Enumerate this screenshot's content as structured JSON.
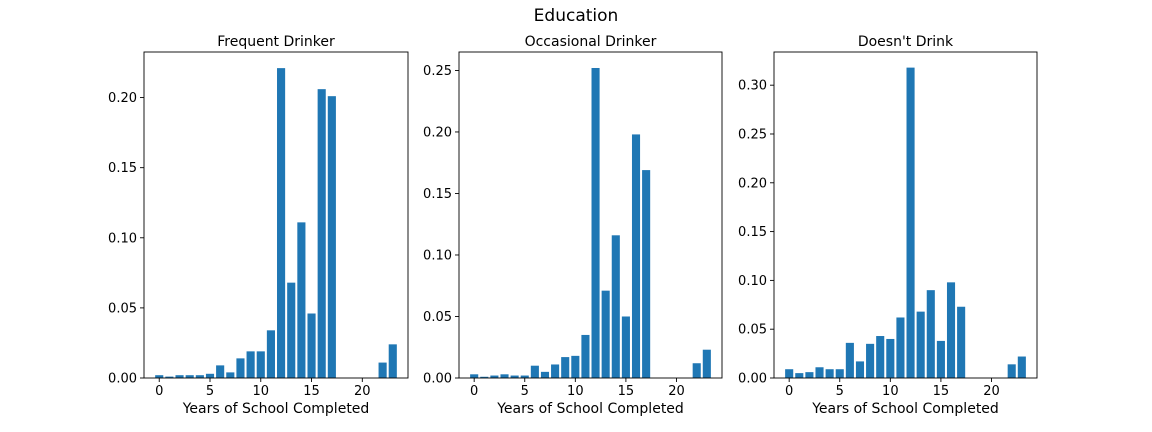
{
  "figure": {
    "suptitle": "Education",
    "bar_color": "#1f77b4"
  },
  "chart_data": [
    {
      "type": "bar",
      "title": "Frequent Drinker",
      "xlabel": "Years of School Completed",
      "ylabel": "",
      "x": [
        0,
        1,
        2,
        3,
        4,
        5,
        6,
        7,
        8,
        9,
        10,
        11,
        12,
        13,
        14,
        15,
        16,
        17,
        18,
        19,
        20,
        21,
        22,
        23
      ],
      "values": [
        0.002,
        0.001,
        0.002,
        0.002,
        0.002,
        0.003,
        0.009,
        0.004,
        0.014,
        0.019,
        0.019,
        0.034,
        0.221,
        0.068,
        0.111,
        0.046,
        0.206,
        0.201,
        0,
        0,
        0,
        0,
        0.011,
        0.024
      ],
      "xlim": [
        -1.5,
        24.5
      ],
      "ylim": [
        0,
        0.2325
      ],
      "xticks": [
        0,
        5,
        10,
        15,
        20
      ],
      "yticks": [
        0.0,
        0.05,
        0.1,
        0.15,
        0.2
      ],
      "ytick_labels": [
        "0.00",
        "0.05",
        "0.10",
        "0.15",
        "0.20"
      ],
      "grid": false
    },
    {
      "type": "bar",
      "title": "Occasional Drinker",
      "xlabel": "Years of School Completed",
      "ylabel": "",
      "x": [
        0,
        1,
        2,
        3,
        4,
        5,
        6,
        7,
        8,
        9,
        10,
        11,
        12,
        13,
        14,
        15,
        16,
        17,
        18,
        19,
        20,
        21,
        22,
        23
      ],
      "values": [
        0.003,
        0.001,
        0.002,
        0.003,
        0.002,
        0.002,
        0.01,
        0.005,
        0.011,
        0.017,
        0.018,
        0.035,
        0.252,
        0.071,
        0.116,
        0.05,
        0.198,
        0.169,
        0,
        0,
        0,
        0,
        0.012,
        0.023
      ],
      "xlim": [
        -1.5,
        24.5
      ],
      "ylim": [
        0,
        0.265
      ],
      "xticks": [
        0,
        5,
        10,
        15,
        20
      ],
      "yticks": [
        0.0,
        0.05,
        0.1,
        0.15,
        0.2,
        0.25
      ],
      "ytick_labels": [
        "0.00",
        "0.05",
        "0.10",
        "0.15",
        "0.20",
        "0.25"
      ],
      "grid": false
    },
    {
      "type": "bar",
      "title": "Doesn't Drink",
      "xlabel": "Years of School Completed",
      "ylabel": "",
      "x": [
        0,
        1,
        2,
        3,
        4,
        5,
        6,
        7,
        8,
        9,
        10,
        11,
        12,
        13,
        14,
        15,
        16,
        17,
        18,
        19,
        20,
        21,
        22,
        23
      ],
      "values": [
        0.009,
        0.005,
        0.006,
        0.011,
        0.009,
        0.009,
        0.036,
        0.017,
        0.035,
        0.043,
        0.04,
        0.062,
        0.318,
        0.068,
        0.09,
        0.038,
        0.098,
        0.073,
        0,
        0,
        0,
        0,
        0.014,
        0.022
      ],
      "xlim": [
        -1.5,
        24.5
      ],
      "ylim": [
        0,
        0.334
      ],
      "xticks": [
        0,
        5,
        10,
        15,
        20
      ],
      "yticks": [
        0.0,
        0.05,
        0.1,
        0.15,
        0.2,
        0.25,
        0.3
      ],
      "ytick_labels": [
        "0.00",
        "0.05",
        "0.10",
        "0.15",
        "0.20",
        "0.25",
        "0.30"
      ],
      "grid": false
    }
  ]
}
